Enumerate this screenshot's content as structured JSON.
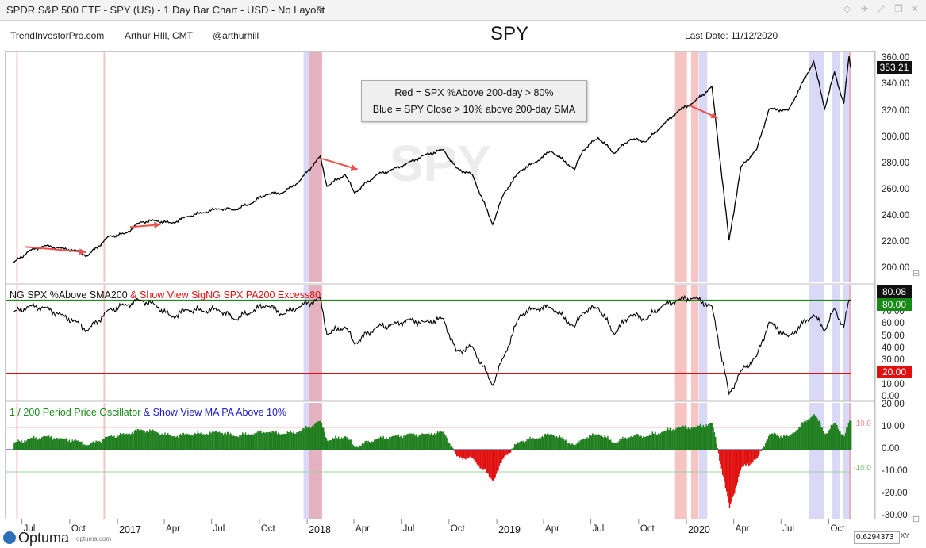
{
  "window": {
    "title": "SPDR S&P 500 ETF - SPY (US) - 1 Day Bar Chart - USD - No Layout",
    "edit_icon": "pencil-icon"
  },
  "header": {
    "site": "TrendInvestorPro.com",
    "author": "Arthur HIll, CMT",
    "handle": "@arthurhill",
    "symbol": "SPY",
    "last_date": "Last Date: 11/12/2020"
  },
  "legend": {
    "line1": "Red = SPX %Above 200-day > 80%",
    "line2": "Blue = SPY Close > 10% above 200-day SMA"
  },
  "watermark": "SPY",
  "panel2": {
    "title_black": "NG SPX %Above SMA200",
    "title_red": "& Show View SigNG SPX PA200 Excess80"
  },
  "panel3": {
    "title_green": "1 / 200 Period Price Oscillator",
    "title_blue": "& Show View MA PA Above 10%"
  },
  "price_tags": {
    "price_last": "353.21",
    "pct_last": "80.08",
    "upper_threshold": "80.00",
    "lower_threshold": "20.00"
  },
  "osc_labels": {
    "pos": "10.0",
    "neg": "-10.0"
  },
  "footer": {
    "brand": "Optuma",
    "brand_sub": "optuma.com",
    "ratio": "0.6294373",
    "xy": "XY"
  },
  "colors": {
    "price": "#000000",
    "red_band": "#f08a8a",
    "blue_band": "#b9b9f0",
    "osc_pos": "#1f7f1f",
    "osc_neg": "#e01010",
    "green_line": "#1a8a1a",
    "red_line": "#e01010",
    "arrow": "#ee5050"
  },
  "chart_data": [
    {
      "type": "line",
      "title": "SPY",
      "ylim": [
        190,
        365
      ],
      "yticks": [
        200,
        220,
        240,
        260,
        280,
        300,
        320,
        340,
        360
      ],
      "x_labels": [
        "Jul",
        "Oct",
        "2017",
        "Apr",
        "Jul",
        "Oct",
        "2018",
        "Apr",
        "Jul",
        "Oct",
        "2019",
        "Apr",
        "Jul",
        "Oct",
        "2020",
        "Apr",
        "Jul",
        "Oct"
      ],
      "x": [
        "2016-06-15",
        "2016-07-15",
        "2016-08-15",
        "2016-09-15",
        "2016-10-15",
        "2016-11-04",
        "2016-12-15",
        "2017-01-15",
        "2017-02-15",
        "2017-03-15",
        "2017-04-15",
        "2017-05-15",
        "2017-06-15",
        "2017-07-15",
        "2017-08-15",
        "2017-09-15",
        "2017-10-15",
        "2017-11-15",
        "2017-12-15",
        "2018-01-26",
        "2018-02-08",
        "2018-03-15",
        "2018-04-02",
        "2018-05-15",
        "2018-06-15",
        "2018-07-15",
        "2018-08-15",
        "2018-09-20",
        "2018-10-15",
        "2018-11-15",
        "2018-12-24",
        "2019-01-15",
        "2019-02-15",
        "2019-03-15",
        "2019-04-15",
        "2019-05-31",
        "2019-06-15",
        "2019-07-15",
        "2019-08-15",
        "2019-09-15",
        "2019-10-15",
        "2019-11-15",
        "2019-12-15",
        "2020-01-15",
        "2020-02-19",
        "2020-03-23",
        "2020-04-15",
        "2020-05-15",
        "2020-06-08",
        "2020-07-15",
        "2020-09-02",
        "2020-09-23",
        "2020-10-12",
        "2020-10-30",
        "2020-11-09",
        "2020-11-12"
      ],
      "series": [
        {
          "values": [
            205,
            214,
            218,
            216,
            214,
            210,
            225,
            227,
            236,
            237,
            235,
            240,
            243,
            246,
            245,
            250,
            257,
            258,
            266,
            286,
            263,
            272,
            258,
            272,
            276,
            281,
            287,
            291,
            277,
            272,
            234,
            258,
            275,
            281,
            290,
            276,
            290,
            300,
            288,
            299,
            297,
            309,
            320,
            327,
            339,
            222,
            278,
            291,
            322,
            321,
            358,
            322,
            350,
            326,
            362,
            353.21
          ]
        }
      ],
      "annotations": {
        "red_bands": [
          [
            "2016-06-20",
            "2016-06-23"
          ],
          [
            "2016-12-05",
            "2016-12-08"
          ],
          [
            "2018-01-05",
            "2018-01-30"
          ],
          [
            "2019-12-10",
            "2020-01-02"
          ],
          [
            "2020-01-10",
            "2020-01-24"
          ],
          [
            "2020-11-09",
            "2020-11-12"
          ]
        ],
        "blue_bands": [
          [
            "2017-12-25",
            "2018-01-29"
          ],
          [
            "2020-01-25",
            "2020-02-10"
          ],
          [
            "2020-08-24",
            "2020-09-22"
          ],
          [
            "2020-10-08",
            "2020-10-22"
          ],
          [
            "2020-10-28",
            "2020-11-12"
          ]
        ]
      }
    },
    {
      "type": "line",
      "title": "NG SPX %Above SMA200 & Show View SigNG SPX PA200 Excess80",
      "ylim": [
        -3,
        92
      ],
      "yticks": [
        0.0,
        10.0,
        20.0,
        30.0,
        40.0,
        50.0,
        60.0,
        70.0
      ],
      "x": [
        "2016-06-15",
        "2016-07-15",
        "2016-08-15",
        "2016-09-15",
        "2016-10-15",
        "2016-11-04",
        "2016-12-15",
        "2017-01-15",
        "2017-02-15",
        "2017-03-15",
        "2017-04-15",
        "2017-05-15",
        "2017-06-15",
        "2017-07-15",
        "2017-08-15",
        "2017-09-15",
        "2017-10-15",
        "2017-11-15",
        "2017-12-15",
        "2018-01-26",
        "2018-02-08",
        "2018-03-15",
        "2018-04-02",
        "2018-05-15",
        "2018-06-15",
        "2018-07-15",
        "2018-08-15",
        "2018-09-20",
        "2018-10-15",
        "2018-11-15",
        "2018-12-24",
        "2019-01-15",
        "2019-02-15",
        "2019-03-15",
        "2019-04-15",
        "2019-05-31",
        "2019-06-15",
        "2019-07-15",
        "2019-08-15",
        "2019-09-15",
        "2019-10-15",
        "2019-11-15",
        "2019-12-15",
        "2020-01-15",
        "2020-02-19",
        "2020-03-23",
        "2020-04-15",
        "2020-05-15",
        "2020-06-08",
        "2020-07-15",
        "2020-09-02",
        "2020-09-23",
        "2020-10-12",
        "2020-10-30",
        "2020-11-09",
        "2020-11-12"
      ],
      "series": [
        {
          "values": [
            70,
            75,
            74,
            68,
            62,
            55,
            72,
            76,
            80,
            76,
            66,
            72,
            71,
            72,
            64,
            70,
            76,
            68,
            74,
            82,
            52,
            58,
            44,
            58,
            60,
            64,
            62,
            65,
            38,
            42,
            10,
            34,
            68,
            73,
            74,
            58,
            70,
            74,
            52,
            68,
            64,
            75,
            80,
            82,
            75,
            3,
            22,
            34,
            62,
            50,
            68,
            55,
            73,
            58,
            80,
            80.08
          ]
        }
      ],
      "reference_lines": [
        80,
        20
      ]
    },
    {
      "type": "bar",
      "title": "1 / 200 Period Price Oscillator & Show View MA PA Above 10%",
      "ylim": [
        -31,
        21
      ],
      "yticks": [
        20.0,
        10.0,
        0.0,
        -10.0,
        -20.0,
        -30.0
      ],
      "x": [
        "2016-06-15",
        "2016-07-15",
        "2016-08-15",
        "2016-09-15",
        "2016-10-15",
        "2016-11-04",
        "2016-12-15",
        "2017-01-15",
        "2017-02-15",
        "2017-03-15",
        "2017-04-15",
        "2017-05-15",
        "2017-06-15",
        "2017-07-15",
        "2017-08-15",
        "2017-09-15",
        "2017-10-15",
        "2017-11-15",
        "2017-12-15",
        "2018-01-26",
        "2018-02-08",
        "2018-03-15",
        "2018-04-02",
        "2018-05-15",
        "2018-06-15",
        "2018-07-15",
        "2018-08-15",
        "2018-09-20",
        "2018-10-15",
        "2018-11-15",
        "2018-12-24",
        "2019-01-15",
        "2019-02-15",
        "2019-03-15",
        "2019-04-15",
        "2019-05-31",
        "2019-06-15",
        "2019-07-15",
        "2019-08-15",
        "2019-09-15",
        "2019-10-15",
        "2019-11-15",
        "2019-12-15",
        "2020-01-15",
        "2020-02-19",
        "2020-03-23",
        "2020-04-15",
        "2020-05-15",
        "2020-06-08",
        "2020-07-15",
        "2020-09-02",
        "2020-09-23",
        "2020-10-12",
        "2020-10-30",
        "2020-11-09",
        "2020-11-12"
      ],
      "series": [
        {
          "values": [
            3,
            5,
            6,
            5,
            4,
            2,
            6,
            7,
            9,
            8,
            6,
            7,
            7,
            8,
            6,
            7,
            8,
            7,
            8,
            13,
            4,
            6,
            1,
            5,
            6,
            7,
            7,
            8,
            -3,
            -4,
            -14,
            -3,
            4,
            5,
            7,
            2,
            5,
            7,
            3,
            6,
            6,
            8,
            10,
            10,
            12,
            -26,
            -8,
            -4,
            7,
            6,
            16,
            7,
            12,
            6,
            13,
            13
          ]
        }
      ],
      "reference_lines": [
        10,
        -10
      ]
    }
  ]
}
